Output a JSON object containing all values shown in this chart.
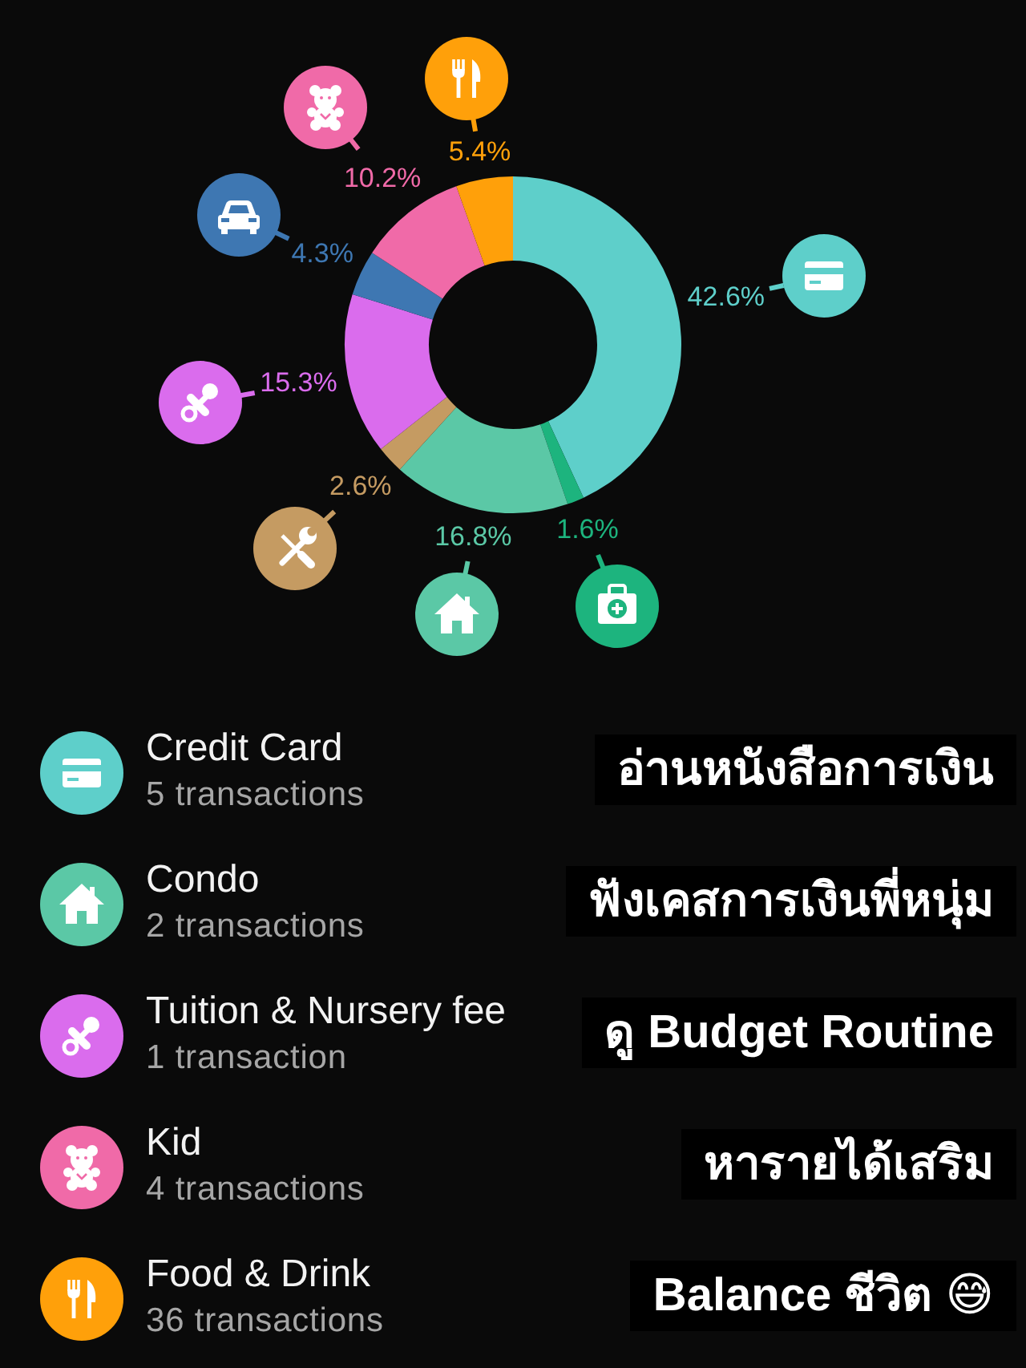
{
  "chart_data": {
    "type": "donut",
    "categories": [
      "Credit Card",
      null,
      "Condo",
      null,
      "Tuition & Nursery fee",
      null,
      "Kid",
      "Food & Drink"
    ],
    "values": [
      42.6,
      1.6,
      16.8,
      2.6,
      15.3,
      4.3,
      10.2,
      5.4
    ],
    "colors": [
      "#5ecfca",
      "#1db47e",
      "#5bc8a6",
      "#c59b62",
      "#da6ced",
      "#3e77b2",
      "#f06aa8",
      "#ffa00a"
    ],
    "value_labels": [
      "42.6%",
      "1.6%",
      "16.8%",
      "2.6%",
      "15.3%",
      "4.3%",
      "10.2%",
      "5.4%"
    ],
    "legend": "bottom",
    "annotations": [
      "5 transactions",
      "2 transactions",
      "1 transaction",
      "4 transactions",
      "36 transactions",
      "อ่านหนังสือการเงิน",
      "ฟังเคสการเงินพี่หนุ่ม",
      "ดู Budget Routine",
      "หารายได้เสริม",
      "Balance ชีวิต 😅"
    ]
  }
}
